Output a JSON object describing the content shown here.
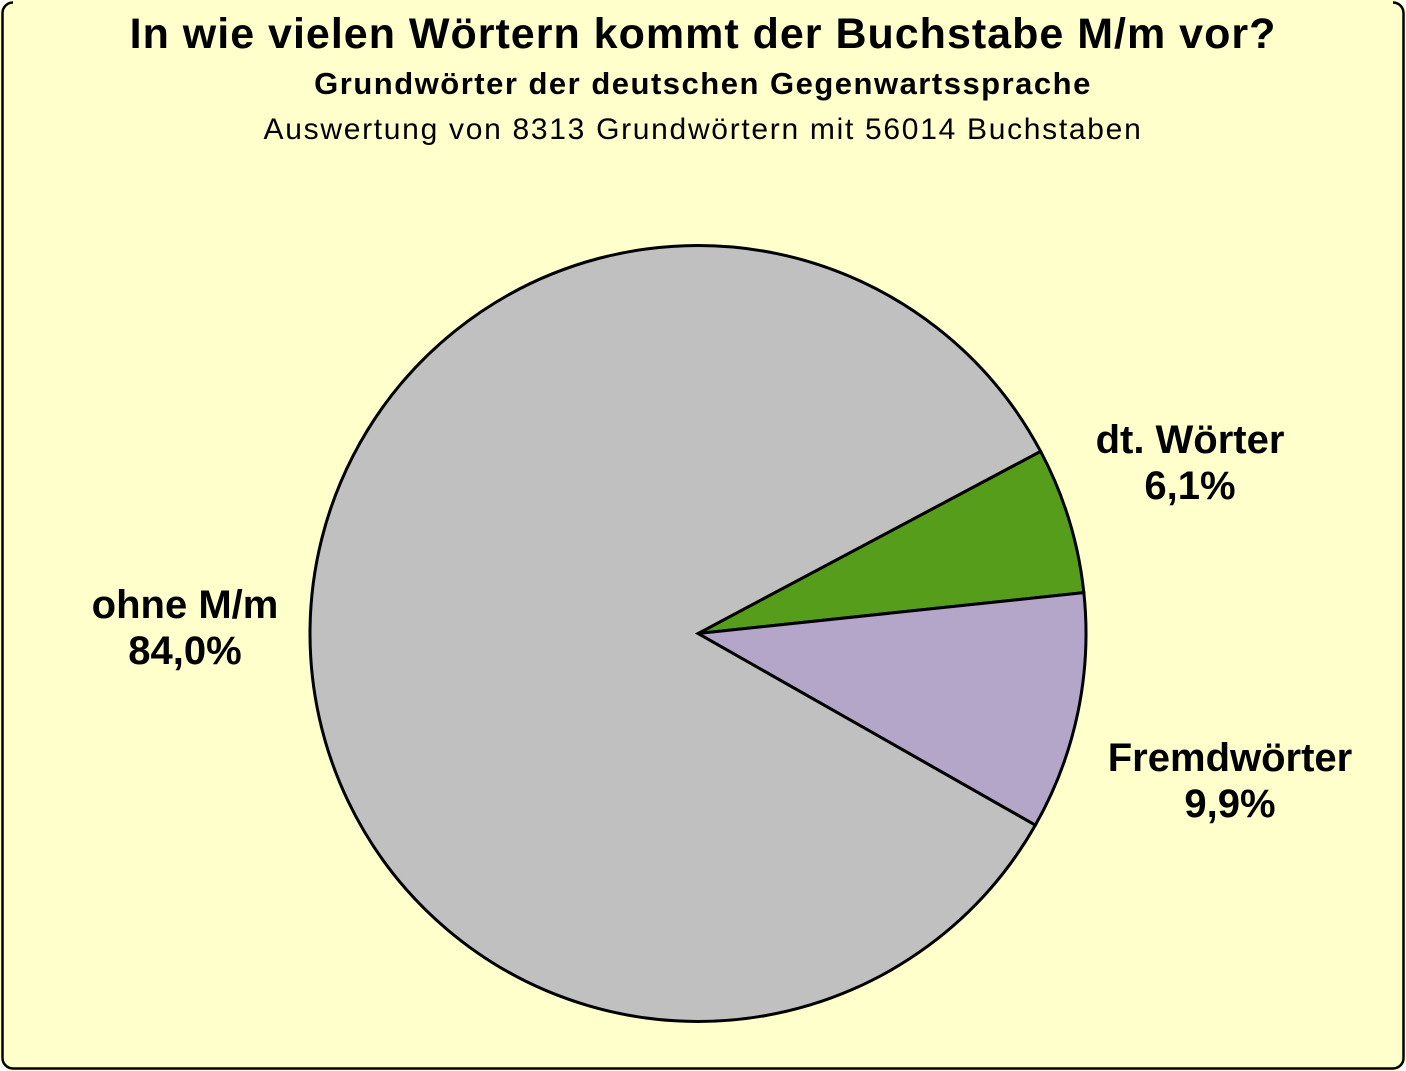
{
  "page": {
    "background_color": "#FFFFCC",
    "border_color": "#000000"
  },
  "title": {
    "line1": "In wie vielen Wörtern kommt der Buchstabe M/m vor?",
    "line2": "Grundwörter der deutschen Gegenwartssprache",
    "line3": "Auswertung von 8313 Grundwörtern mit 56014 Buchstaben"
  },
  "chart_data": {
    "type": "pie",
    "title": "In wie vielen Wörtern kommt der Buchstabe M/m vor?",
    "subtitle": "Grundwörter der deutschen Gegenwartssprache",
    "note": "Auswertung von 8313 Grundwörtern mit 56014 Buchstaben",
    "slices": [
      {
        "id": "dt-woerter",
        "label": "dt. Wörter",
        "value_pct": 6.1,
        "value_label": "6,1%",
        "color": "#579D1C"
      },
      {
        "id": "fremdwoerter",
        "label": "Fremdwörter",
        "value_pct": 9.9,
        "value_label": "9,9%",
        "color": "#B3A6C9"
      },
      {
        "id": "ohne-mm",
        "label": "ohne M/m",
        "value_pct": 84.0,
        "value_label": "84,0%",
        "color": "#C0C0C0"
      }
    ],
    "layout": {
      "start_angle_deg": 28,
      "direction": "clockwise",
      "stroke_color": "#000000",
      "legend": "none",
      "labels": "outside"
    }
  }
}
